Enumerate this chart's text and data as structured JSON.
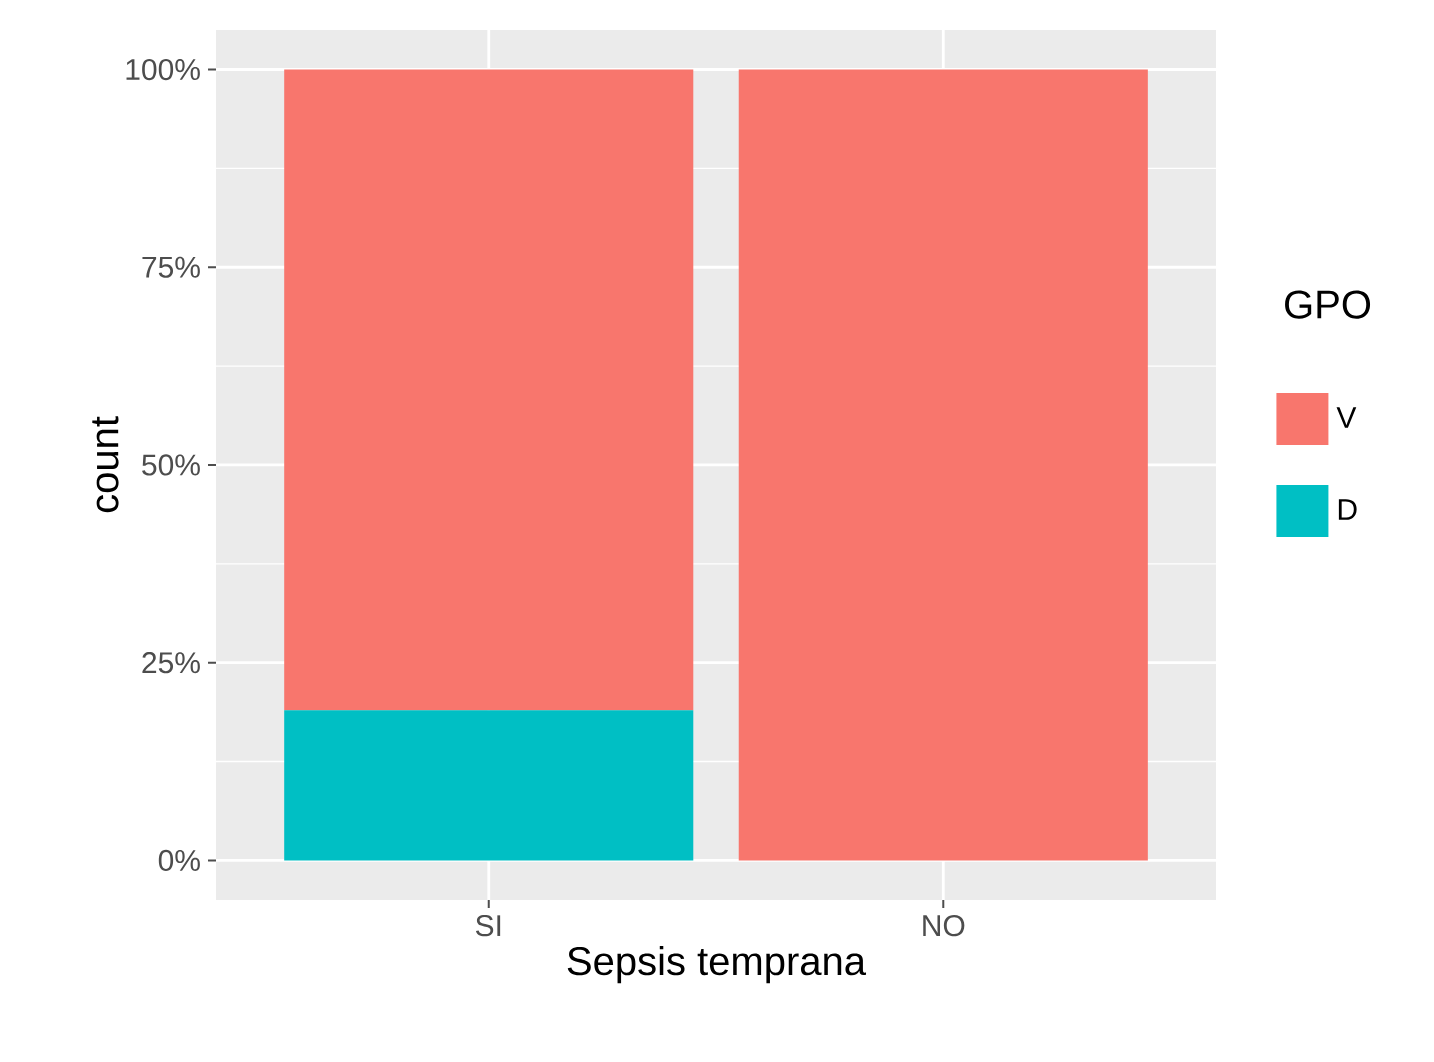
{
  "chart_data": {
    "type": "bar",
    "stacked": true,
    "xlabel": "Sepsis temprana",
    "ylabel": "count",
    "legend_title": "GPO",
    "legend": "right",
    "grid": true,
    "categories": [
      "SI",
      "NO"
    ],
    "series": [
      {
        "name": "D",
        "color": "#00bfc4",
        "values": [
          19,
          0
        ]
      },
      {
        "name": "V",
        "color": "#f8766d",
        "values": [
          81,
          100
        ]
      }
    ],
    "ylim": [
      -5,
      105
    ],
    "yticks": [
      {
        "value": 0,
        "label": "0%"
      },
      {
        "value": 25,
        "label": "25%"
      },
      {
        "value": 50,
        "label": "50%"
      },
      {
        "value": 75,
        "label": "75%"
      },
      {
        "value": 100,
        "label": "100%"
      }
    ]
  }
}
